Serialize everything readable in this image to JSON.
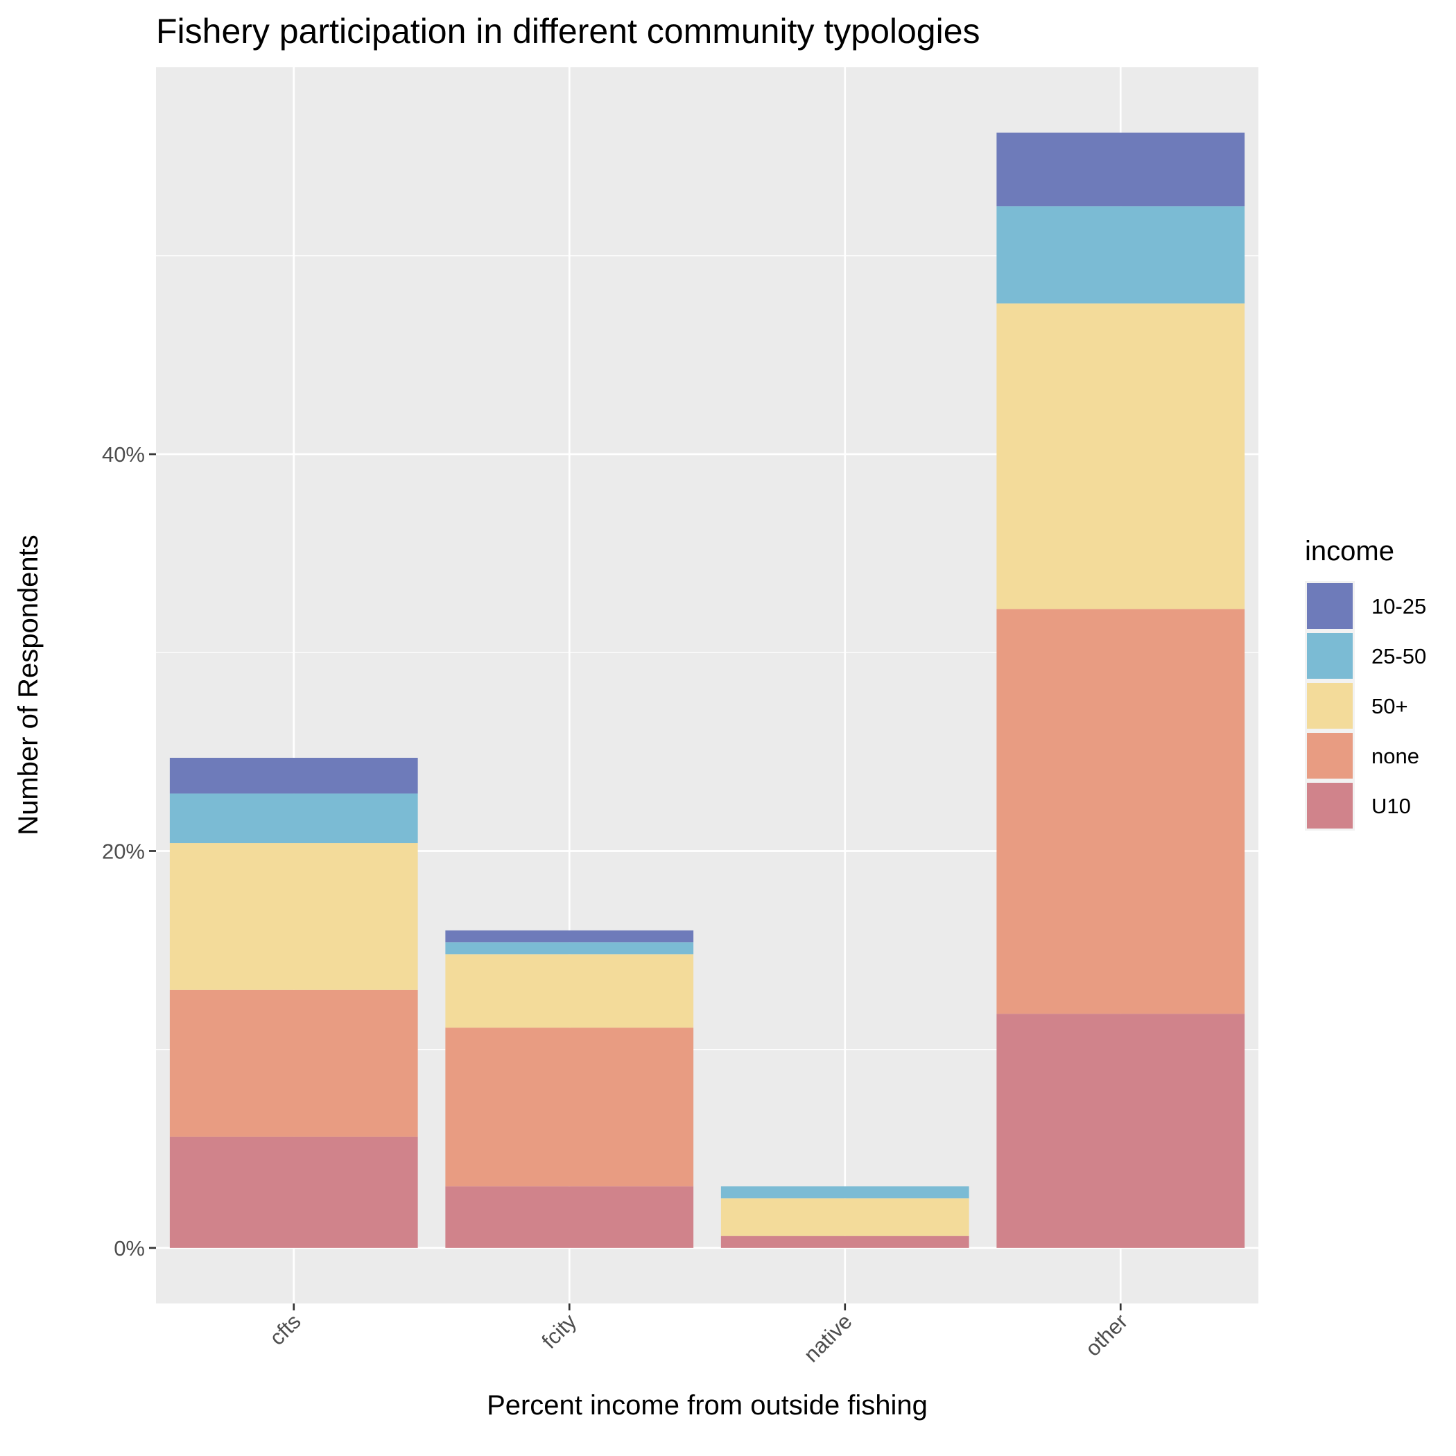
{
  "chart_data": {
    "type": "bar",
    "stacked": true,
    "title": "Fishery participation in different community typologies",
    "xlabel": "Percent income from outside fishing",
    "ylabel": "Number of Respondents",
    "categories": [
      "cfts",
      "fcity",
      "native",
      "other"
    ],
    "y_ticks": [
      {
        "value": 0,
        "label": "0%"
      },
      {
        "value": 20,
        "label": "20%"
      },
      {
        "value": 40,
        "label": "40%"
      }
    ],
    "ylim": [
      -2.8,
      59.5
    ],
    "y_unit": "percent",
    "grid": true,
    "legend": {
      "title": "income",
      "position": "right"
    },
    "series": [
      {
        "name": "U10",
        "color": "#d0838b",
        "values": [
          5.6,
          3.1,
          0.6,
          11.8
        ]
      },
      {
        "name": "none",
        "color": "#e89c82",
        "values": [
          7.4,
          8.0,
          0.0,
          20.4
        ]
      },
      {
        "name": "50+",
        "color": "#f3db9a",
        "values": [
          7.4,
          3.7,
          1.9,
          15.4
        ]
      },
      {
        "name": "25-50",
        "color": "#7bbbd4",
        "values": [
          2.5,
          0.6,
          0.6,
          4.9
        ]
      },
      {
        "name": "10-25",
        "color": "#6e7bba",
        "values": [
          1.8,
          0.6,
          0.0,
          3.7
        ]
      }
    ],
    "legend_order": [
      "10-25",
      "25-50",
      "50+",
      "none",
      "U10"
    ]
  }
}
